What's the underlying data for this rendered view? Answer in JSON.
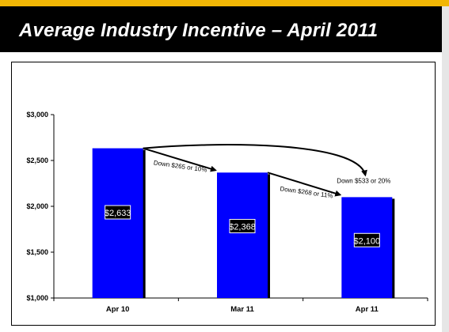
{
  "slide": {
    "title": "Average Industry Incentive – April 2011",
    "colors": {
      "accent": "#f2b705",
      "band": "#000000",
      "bar": "#0000ff"
    }
  },
  "chart_data": {
    "type": "bar",
    "title": "",
    "xlabel": "",
    "ylabel": "",
    "categories": [
      "Apr 10",
      "Mar 11",
      "Apr 11"
    ],
    "series": [
      {
        "values": [
          2633,
          2368,
          2100
        ],
        "labels": [
          "$2,633",
          "$2,368",
          "$2,100"
        ]
      }
    ],
    "ylim": [
      1000,
      3000
    ],
    "yticks": [
      1000,
      1500,
      2000,
      2500,
      3000
    ],
    "ytick_labels": [
      "$1,000",
      "$1,500",
      "$2,000",
      "$2,500",
      "$3,000"
    ],
    "grid": false,
    "legend": "none",
    "annotations": [
      {
        "text": "Down $265 or 10%",
        "from": "Apr 10",
        "to": "Mar 11"
      },
      {
        "text": "Down $268 or 11%",
        "from": "Mar 11",
        "to": "Apr 11"
      },
      {
        "text": "Down $533 or 20%",
        "from": "Apr 10",
        "to": "Apr 11"
      }
    ]
  }
}
